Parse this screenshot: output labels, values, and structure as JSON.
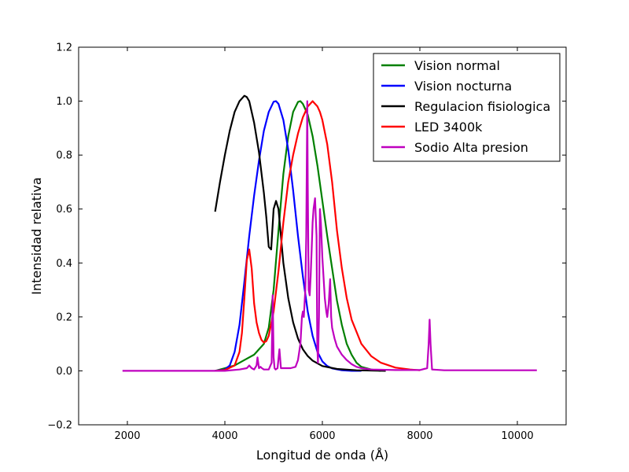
{
  "chart_data": {
    "type": "line",
    "title": "",
    "xlabel": "Longitud de onda (Å)",
    "ylabel": "Intensidad relativa",
    "xlim": [
      1000,
      11000
    ],
    "ylim": [
      -0.2,
      1.2
    ],
    "xticks": [
      2000,
      4000,
      6000,
      8000,
      10000
    ],
    "yticks": [
      -0.2,
      0.0,
      0.2,
      0.4,
      0.6,
      0.8,
      1.0,
      1.2
    ],
    "xtick_labels": [
      "2000",
      "4000",
      "6000",
      "8000",
      "10000"
    ],
    "ytick_labels": [
      "−0.2",
      "0.0",
      "0.2",
      "0.4",
      "0.6",
      "0.8",
      "1.0",
      "1.2"
    ],
    "grid": false,
    "legend_position": "top-right",
    "series": [
      {
        "name": "Vision normal",
        "color": "#008000",
        "x": [
          3800,
          4000,
          4200,
          4400,
          4600,
          4800,
          4900,
          5000,
          5100,
          5200,
          5300,
          5400,
          5500,
          5550,
          5600,
          5700,
          5800,
          5900,
          6000,
          6100,
          6200,
          6300,
          6400,
          6500,
          6600,
          6700,
          6800,
          7000,
          7200
        ],
        "y": [
          0.0,
          0.01,
          0.02,
          0.04,
          0.06,
          0.1,
          0.16,
          0.3,
          0.52,
          0.73,
          0.87,
          0.96,
          0.997,
          1.0,
          0.99,
          0.95,
          0.87,
          0.76,
          0.63,
          0.5,
          0.38,
          0.26,
          0.17,
          0.1,
          0.06,
          0.03,
          0.015,
          0.005,
          0.0
        ]
      },
      {
        "name": "Vision nocturna",
        "color": "#0000ff",
        "x": [
          3800,
          4000,
          4100,
          4200,
          4300,
          4400,
          4500,
          4600,
          4700,
          4800,
          4900,
          5000,
          5050,
          5100,
          5200,
          5300,
          5400,
          5500,
          5600,
          5700,
          5800,
          5900,
          6000,
          6100,
          6200,
          6400,
          6600,
          6800
        ],
        "y": [
          0.0,
          0.005,
          0.02,
          0.07,
          0.17,
          0.33,
          0.5,
          0.65,
          0.78,
          0.89,
          0.96,
          0.998,
          1.0,
          0.99,
          0.93,
          0.82,
          0.67,
          0.5,
          0.35,
          0.22,
          0.13,
          0.07,
          0.035,
          0.018,
          0.009,
          0.002,
          0.0,
          0.0
        ]
      },
      {
        "name": "Regulacion fisiologica",
        "color": "#000000",
        "x": [
          3800,
          3900,
          4000,
          4100,
          4200,
          4300,
          4400,
          4450,
          4500,
          4600,
          4700,
          4800,
          4850,
          4900,
          4950,
          5000,
          5050,
          5100,
          5150,
          5200,
          5300,
          5400,
          5500,
          5600,
          5700,
          5800,
          6000,
          6300,
          6700,
          7300
        ],
        "y": [
          0.59,
          0.7,
          0.8,
          0.89,
          0.96,
          1.0,
          1.02,
          1.015,
          1.0,
          0.92,
          0.81,
          0.66,
          0.57,
          0.46,
          0.45,
          0.6,
          0.63,
          0.6,
          0.5,
          0.4,
          0.27,
          0.18,
          0.12,
          0.08,
          0.055,
          0.038,
          0.018,
          0.007,
          0.002,
          0.0
        ]
      },
      {
        "name": "LED 3400k",
        "color": "#ff0000",
        "x": [
          3800,
          4000,
          4200,
          4300,
          4350,
          4400,
          4450,
          4500,
          4550,
          4600,
          4650,
          4700,
          4750,
          4800,
          4850,
          4900,
          5000,
          5100,
          5200,
          5300,
          5400,
          5500,
          5600,
          5700,
          5750,
          5800,
          5850,
          5900,
          5950,
          6000,
          6100,
          6200,
          6300,
          6400,
          6500,
          6600,
          6800,
          7000,
          7200,
          7500,
          7800,
          8000
        ],
        "y": [
          0.0,
          0.003,
          0.02,
          0.07,
          0.14,
          0.27,
          0.41,
          0.45,
          0.38,
          0.25,
          0.18,
          0.14,
          0.115,
          0.105,
          0.11,
          0.13,
          0.22,
          0.37,
          0.55,
          0.7,
          0.8,
          0.88,
          0.94,
          0.98,
          0.99,
          1.0,
          0.99,
          0.98,
          0.96,
          0.93,
          0.84,
          0.7,
          0.52,
          0.38,
          0.27,
          0.19,
          0.1,
          0.055,
          0.03,
          0.012,
          0.005,
          0.002
        ]
      },
      {
        "name": "Sodio Alta presion",
        "color": "#bf00bf",
        "x": [
          1900,
          2500,
          3000,
          3500,
          4000,
          4300,
          4450,
          4500,
          4550,
          4600,
          4650,
          4670,
          4700,
          4730,
          4760,
          4800,
          4900,
          4960,
          4980,
          5000,
          5020,
          5040,
          5080,
          5120,
          5150,
          5180,
          5250,
          5350,
          5450,
          5500,
          5550,
          5580,
          5600,
          5620,
          5650,
          5670,
          5690,
          5700,
          5720,
          5740,
          5760,
          5780,
          5800,
          5820,
          5850,
          5870,
          5880,
          5895,
          5910,
          5930,
          5950,
          5970,
          6000,
          6050,
          6080,
          6100,
          6130,
          6160,
          6180,
          6200,
          6250,
          6300,
          6400,
          6500,
          6600,
          6700,
          6800,
          7000,
          7500,
          8000,
          8150,
          8180,
          8200,
          8220,
          8250,
          8500,
          9000,
          9500,
          10000,
          10400
        ],
        "y": [
          0.0,
          0.0,
          0.0,
          0.0,
          0.0,
          0.005,
          0.01,
          0.02,
          0.01,
          0.005,
          0.02,
          0.05,
          0.01,
          0.015,
          0.01,
          0.005,
          0.005,
          0.03,
          0.28,
          0.05,
          0.01,
          0.005,
          0.01,
          0.08,
          0.01,
          0.01,
          0.01,
          0.01,
          0.015,
          0.04,
          0.1,
          0.2,
          0.22,
          0.2,
          0.3,
          0.5,
          1.0,
          0.7,
          0.3,
          0.28,
          0.35,
          0.45,
          0.55,
          0.6,
          0.64,
          0.55,
          0.5,
          0.1,
          0.03,
          0.2,
          0.6,
          0.55,
          0.42,
          0.27,
          0.22,
          0.2,
          0.25,
          0.34,
          0.2,
          0.16,
          0.12,
          0.09,
          0.06,
          0.04,
          0.025,
          0.015,
          0.01,
          0.005,
          0.003,
          0.003,
          0.01,
          0.1,
          0.19,
          0.1,
          0.005,
          0.002,
          0.002,
          0.002,
          0.002,
          0.002
        ]
      }
    ]
  }
}
